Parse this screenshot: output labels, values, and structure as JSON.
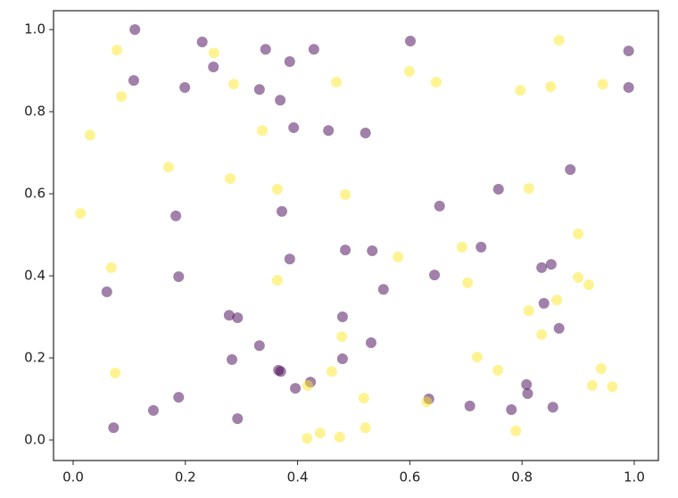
{
  "chart_data": {
    "type": "scatter",
    "xlim": [
      -0.035,
      1.043
    ],
    "ylim": [
      -0.05,
      1.046
    ],
    "xticks": [
      {
        "value": 0,
        "label": "0.0"
      },
      0.2,
      0.4,
      0.6,
      0.8,
      {
        "value": 1,
        "label": "1.0"
      }
    ],
    "yticks": [
      {
        "value": 0,
        "label": "0.0"
      },
      0.2,
      0.4,
      0.6,
      0.8,
      {
        "value": 1,
        "label": "1.0"
      }
    ],
    "grid": false,
    "alpha": 0.5,
    "series": [
      {
        "color": "#440154",
        "x": [
          0.11,
          0.23,
          0.343,
          0.429,
          0.386,
          0.25,
          0.108,
          0.199,
          0.332,
          0.369,
          0.393,
          0.455,
          0.521,
          0.601,
          0.99,
          0.99,
          0.886,
          0.758,
          0.653,
          0.183,
          0.372,
          0.485,
          0.533,
          0.727,
          0.386,
          0.852,
          0.835,
          0.644,
          0.188,
          0.06,
          0.553,
          0.839,
          0.278,
          0.293,
          0.48,
          0.866,
          0.332,
          0.531,
          0.283,
          0.48,
          0.366,
          0.37,
          0.423,
          0.396,
          0.808,
          0.81,
          0.188,
          0.634,
          0.143,
          0.707,
          0.781,
          0.855,
          0.293,
          0.072
        ],
        "y": [
          1.0,
          0.97,
          0.952,
          0.952,
          0.922,
          0.909,
          0.876,
          0.859,
          0.854,
          0.828,
          0.761,
          0.754,
          0.748,
          0.972,
          0.948,
          0.859,
          0.659,
          0.611,
          0.57,
          0.546,
          0.557,
          0.463,
          0.461,
          0.47,
          0.441,
          0.428,
          0.42,
          0.402,
          0.398,
          0.361,
          0.367,
          0.333,
          0.304,
          0.298,
          0.3,
          0.272,
          0.23,
          0.237,
          0.196,
          0.198,
          0.17,
          0.167,
          0.141,
          0.126,
          0.135,
          0.113,
          0.104,
          0.1,
          0.072,
          0.083,
          0.074,
          0.08,
          0.052,
          0.03
        ]
      },
      {
        "color": "#fde725",
        "x": [
          0.078,
          0.251,
          0.866,
          0.086,
          0.286,
          0.469,
          0.599,
          0.647,
          0.797,
          0.851,
          0.944,
          0.03,
          0.337,
          0.17,
          0.28,
          0.364,
          0.485,
          0.812,
          0.013,
          0.9,
          0.693,
          0.579,
          0.068,
          0.364,
          0.9,
          0.919,
          0.703,
          0.862,
          0.812,
          0.835,
          0.479,
          0.72,
          0.757,
          0.461,
          0.941,
          0.075,
          0.418,
          0.925,
          0.961,
          0.518,
          0.63,
          0.521,
          0.44,
          0.789,
          0.417,
          0.475
        ],
        "y": [
          0.95,
          0.943,
          0.974,
          0.837,
          0.867,
          0.872,
          0.898,
          0.872,
          0.852,
          0.861,
          0.867,
          0.743,
          0.754,
          0.665,
          0.637,
          0.611,
          0.598,
          0.613,
          0.552,
          0.502,
          0.47,
          0.446,
          0.42,
          0.389,
          0.396,
          0.378,
          0.383,
          0.341,
          0.315,
          0.257,
          0.252,
          0.202,
          0.17,
          0.167,
          0.174,
          0.163,
          0.133,
          0.133,
          0.13,
          0.102,
          0.093,
          0.03,
          0.017,
          0.022,
          0.004,
          0.007
        ]
      }
    ]
  }
}
